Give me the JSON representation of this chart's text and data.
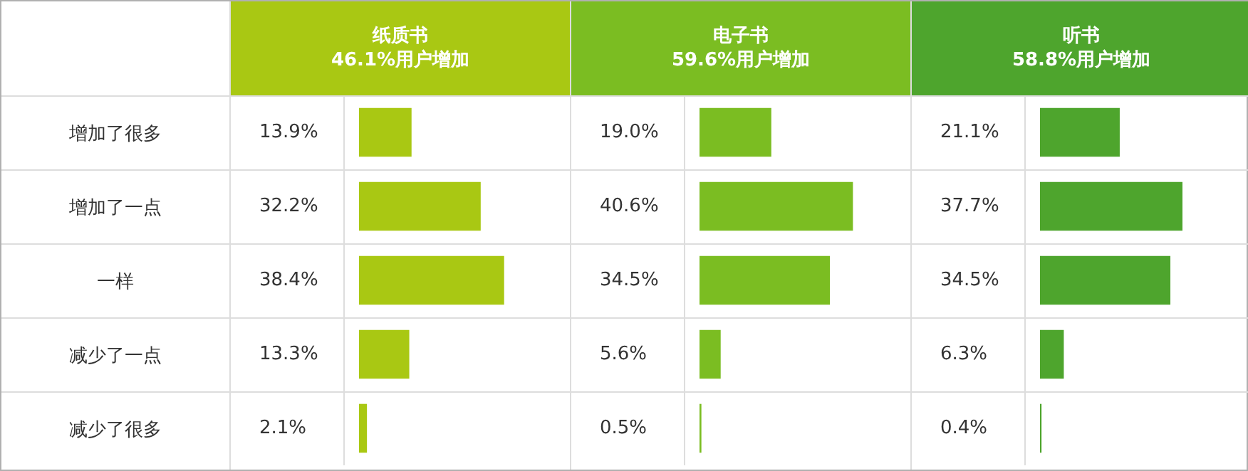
{
  "chart_data": [
    {
      "type": "bar",
      "orientation": "horizontal",
      "title": "纸质书",
      "subtitle": "46.1%用户增加",
      "categories": [
        "增加了很多",
        "增加了一点",
        "一样",
        "减少了一点",
        "减少了很多"
      ],
      "values": [
        13.9,
        32.2,
        38.4,
        13.3,
        2.1
      ],
      "value_labels": [
        "13.9%",
        "32.2%",
        "38.4%",
        "13.3%",
        "2.1%"
      ],
      "color": "#a9c813",
      "tick_labels": "y"
    },
    {
      "type": "bar",
      "orientation": "horizontal",
      "title": "电子书",
      "subtitle": "59.6%用户增加",
      "values": [
        19.0,
        40.6,
        34.5,
        5.6,
        0.5
      ],
      "value_labels": [
        "19.0%",
        "40.6%",
        "34.5%",
        "5.6%",
        "0.5%"
      ],
      "color": "#7bbd22",
      "tick_labels": false
    },
    {
      "type": "bar",
      "orientation": "horizontal",
      "title": "听书",
      "subtitle": "58.8%用户增加",
      "values": [
        21.1,
        37.7,
        34.5,
        6.3,
        0.4
      ],
      "value_labels": [
        "21.1%",
        "37.7%",
        "34.5%",
        "6.3%",
        "0.4%"
      ],
      "color": "#4ea52d",
      "tick_labels": false
    }
  ]
}
